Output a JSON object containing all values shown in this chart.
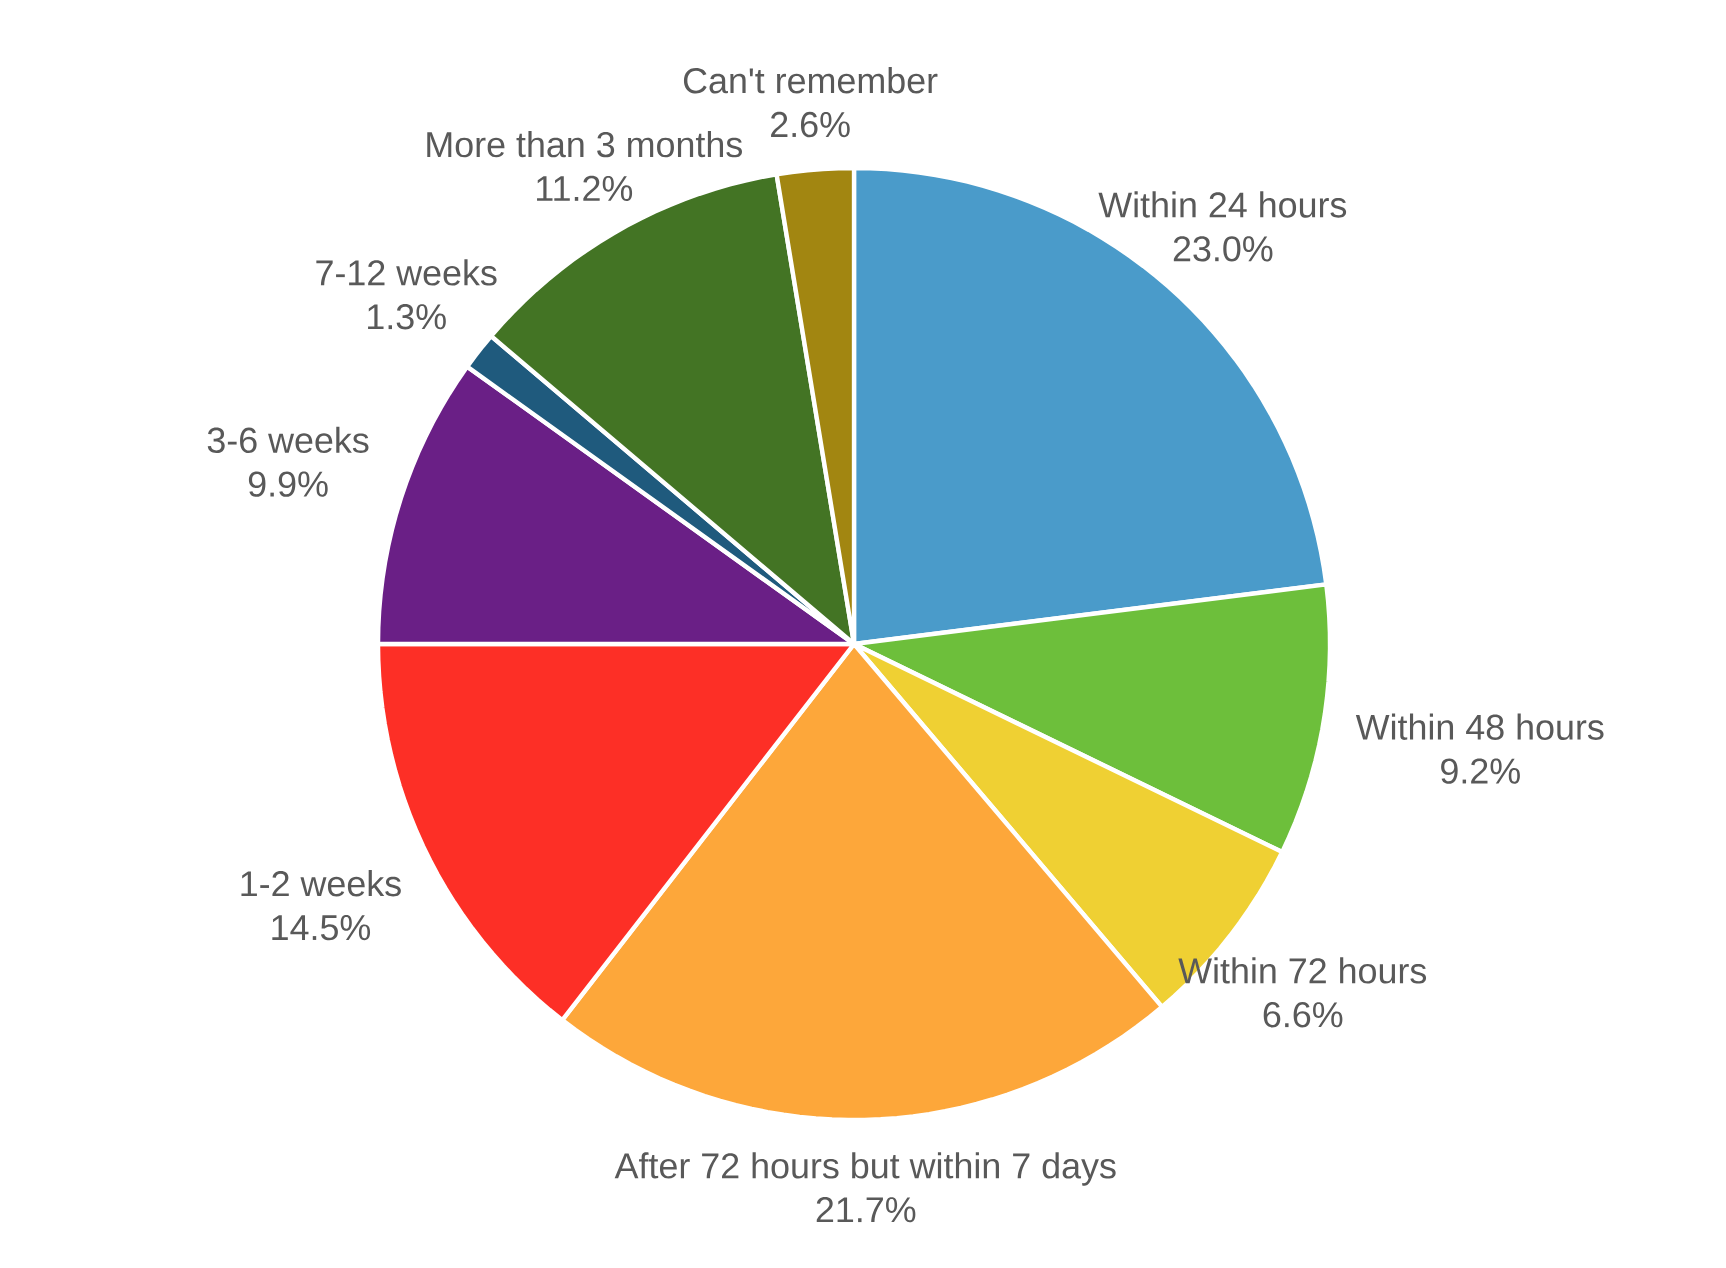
{
  "chart_data": {
    "type": "pie",
    "categories": [
      "Within 24 hours",
      "Within 48 hours",
      "Within 72 hours",
      "After 72 hours but within 7 days",
      "1-2 weeks",
      "3-6 weeks",
      "7-12 weeks",
      "More than 3 months",
      "Can't remember"
    ],
    "values": [
      23.0,
      9.2,
      6.6,
      21.7,
      14.5,
      9.9,
      1.3,
      11.2,
      2.6
    ],
    "value_labels": [
      "23.0%",
      "9.2%",
      "6.6%",
      "21.7%",
      "14.5%",
      "9.9%",
      "1.3%",
      "11.2%",
      "2.6%"
    ],
    "colors": [
      "#4a9bca",
      "#6dbf3b",
      "#efd033",
      "#fda73a",
      "#fd2f26",
      "#6a1f86",
      "#1f5a7d",
      "#437424",
      "#a28611"
    ]
  }
}
